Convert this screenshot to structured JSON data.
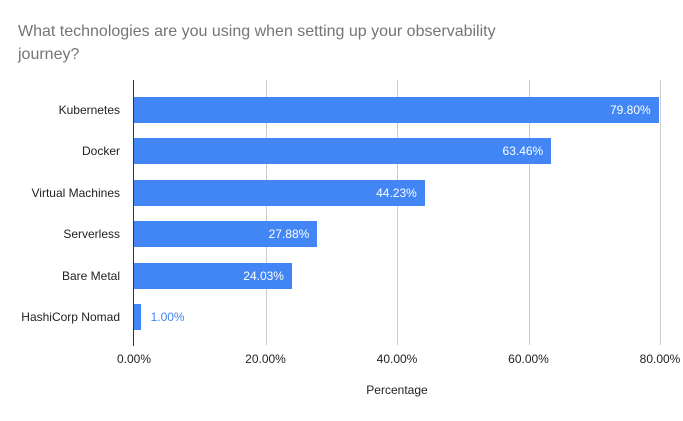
{
  "title": "What technologies are you using when setting up your observability journey?",
  "title_lines": [
    "What technologies are you using when setting up your observability",
    "journey?"
  ],
  "chart_data": {
    "type": "bar",
    "orientation": "horizontal",
    "title": "What technologies are you using when setting up your observability journey?",
    "categories": [
      "Kubernetes",
      "Docker",
      "Virtual Machines",
      "Serverless",
      "Bare Metal",
      "HashiCorp Nomad"
    ],
    "values": [
      79.8,
      63.46,
      44.23,
      27.88,
      24.03,
      1.0
    ],
    "value_labels": [
      "79.80%",
      "63.46%",
      "44.23%",
      "27.88%",
      "24.03%",
      "1.00%"
    ],
    "xlabel": "Percentage",
    "ylabel": "",
    "x_tick_labels": [
      "0.00%",
      "20.00%",
      "40.00%",
      "60.00%",
      "80.00%"
    ],
    "x_tick_values": [
      0,
      20,
      40,
      60,
      80
    ],
    "xlim": [
      0,
      80
    ],
    "grid": true,
    "legend": false,
    "colors": {
      "bar": "#4285f4",
      "value_label_inside": "#ffffff",
      "value_label_outside": "#4285f4",
      "title": "#757575",
      "axis_text": "#222222",
      "gridline": "#cccccc",
      "axis_line": "#333333",
      "background": "#ffffff"
    }
  }
}
